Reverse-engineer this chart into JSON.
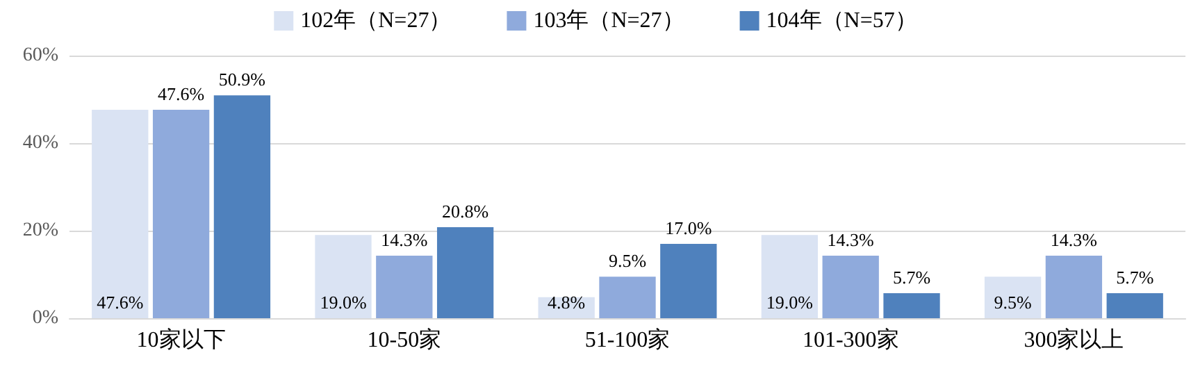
{
  "chart_data": {
    "type": "bar",
    "categories": [
      "10家以下",
      "10-50家",
      "51-100家",
      "101-300家",
      "300家以上"
    ],
    "series": [
      {
        "name": "102年（N=27）",
        "color": "#dae3f3",
        "values": [
          47.6,
          19.0,
          4.8,
          19.0,
          9.5
        ],
        "value_labels": [
          "47.6%",
          "19.0%",
          "4.8%",
          "19.0%",
          "9.5%"
        ]
      },
      {
        "name": "103年（N=27）",
        "color": "#8faadc",
        "values": [
          47.6,
          14.3,
          9.5,
          14.3,
          14.3
        ],
        "value_labels": [
          "47.6%",
          "14.3%",
          "9.5%",
          "14.3%",
          "14.3%"
        ]
      },
      {
        "name": "104年（N=57）",
        "color": "#4f81bd",
        "values": [
          50.9,
          20.8,
          17.0,
          5.7,
          5.7
        ],
        "value_labels": [
          "50.9%",
          "20.8%",
          "17.0%",
          "5.7%",
          "5.7%"
        ]
      }
    ],
    "ylim": [
      0,
      60
    ],
    "yticks": [
      {
        "value": 0,
        "label": "0%"
      },
      {
        "value": 20,
        "label": "20%"
      },
      {
        "value": 40,
        "label": "40%"
      },
      {
        "value": 60,
        "label": "60%"
      }
    ],
    "grid": "y",
    "legend": "top"
  }
}
